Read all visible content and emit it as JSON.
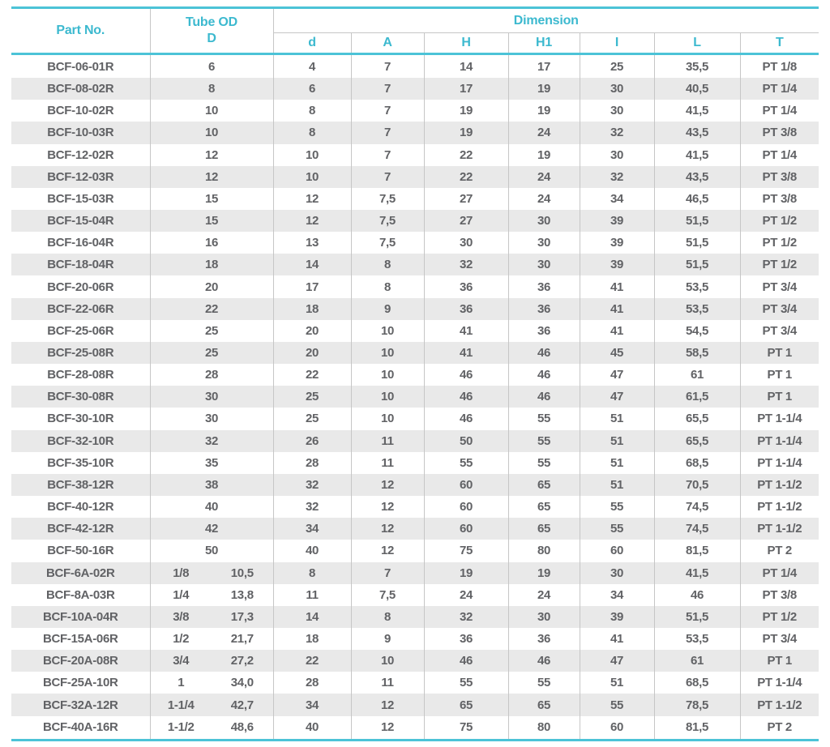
{
  "colors": {
    "accent_teal": "#4cc3d7",
    "header_text_teal": "#3cb9cf",
    "grid_gray": "#c6c6c6",
    "stripe_gray": "#e9e9e9",
    "body_text_gray": "#616265",
    "background": "#ffffff"
  },
  "table": {
    "header": {
      "part_no": "Part No.",
      "tube_od": "Tube OD",
      "tube_od_sub": "D",
      "dimension": "Dimension",
      "dim_columns": [
        "d",
        "A",
        "H",
        "H1",
        "I",
        "L",
        "T"
      ]
    },
    "rows": [
      [
        "BCF-06-01R",
        "6",
        "",
        "4",
        "7",
        "14",
        "17",
        "25",
        "35,5",
        "PT 1/8"
      ],
      [
        "BCF-08-02R",
        "8",
        "",
        "6",
        "7",
        "17",
        "19",
        "30",
        "40,5",
        "PT 1/4"
      ],
      [
        "BCF-10-02R",
        "10",
        "",
        "8",
        "7",
        "19",
        "19",
        "30",
        "41,5",
        "PT 1/4"
      ],
      [
        "BCF-10-03R",
        "10",
        "",
        "8",
        "7",
        "19",
        "24",
        "32",
        "43,5",
        "PT 3/8"
      ],
      [
        "BCF-12-02R",
        "12",
        "",
        "10",
        "7",
        "22",
        "19",
        "30",
        "41,5",
        "PT 1/4"
      ],
      [
        "BCF-12-03R",
        "12",
        "",
        "10",
        "7",
        "22",
        "24",
        "32",
        "43,5",
        "PT 3/8"
      ],
      [
        "BCF-15-03R",
        "15",
        "",
        "12",
        "7,5",
        "27",
        "24",
        "34",
        "46,5",
        "PT 3/8"
      ],
      [
        "BCF-15-04R",
        "15",
        "",
        "12",
        "7,5",
        "27",
        "30",
        "39",
        "51,5",
        "PT 1/2"
      ],
      [
        "BCF-16-04R",
        "16",
        "",
        "13",
        "7,5",
        "30",
        "30",
        "39",
        "51,5",
        "PT 1/2"
      ],
      [
        "BCF-18-04R",
        "18",
        "",
        "14",
        "8",
        "32",
        "30",
        "39",
        "51,5",
        "PT 1/2"
      ],
      [
        "BCF-20-06R",
        "20",
        "",
        "17",
        "8",
        "36",
        "36",
        "41",
        "53,5",
        "PT 3/4"
      ],
      [
        "BCF-22-06R",
        "22",
        "",
        "18",
        "9",
        "36",
        "36",
        "41",
        "53,5",
        "PT 3/4"
      ],
      [
        "BCF-25-06R",
        "25",
        "",
        "20",
        "10",
        "41",
        "36",
        "41",
        "54,5",
        "PT 3/4"
      ],
      [
        "BCF-25-08R",
        "25",
        "",
        "20",
        "10",
        "41",
        "46",
        "45",
        "58,5",
        "PT 1"
      ],
      [
        "BCF-28-08R",
        "28",
        "",
        "22",
        "10",
        "46",
        "46",
        "47",
        "61",
        "PT 1"
      ],
      [
        "BCF-30-08R",
        "30",
        "",
        "25",
        "10",
        "46",
        "46",
        "47",
        "61,5",
        "PT 1"
      ],
      [
        "BCF-30-10R",
        "30",
        "",
        "25",
        "10",
        "46",
        "55",
        "51",
        "65,5",
        "PT 1-1/4"
      ],
      [
        "BCF-32-10R",
        "32",
        "",
        "26",
        "11",
        "50",
        "55",
        "51",
        "65,5",
        "PT 1-1/4"
      ],
      [
        "BCF-35-10R",
        "35",
        "",
        "28",
        "11",
        "55",
        "55",
        "51",
        "68,5",
        "PT 1-1/4"
      ],
      [
        "BCF-38-12R",
        "38",
        "",
        "32",
        "12",
        "60",
        "65",
        "51",
        "70,5",
        "PT 1-1/2"
      ],
      [
        "BCF-40-12R",
        "40",
        "",
        "32",
        "12",
        "60",
        "65",
        "55",
        "74,5",
        "PT 1-1/2"
      ],
      [
        "BCF-42-12R",
        "42",
        "",
        "34",
        "12",
        "60",
        "65",
        "55",
        "74,5",
        "PT 1-1/2"
      ],
      [
        "BCF-50-16R",
        "50",
        "",
        "40",
        "12",
        "75",
        "80",
        "60",
        "81,5",
        "PT 2"
      ],
      [
        "BCF-6A-02R",
        "1/8",
        "10,5",
        "8",
        "7",
        "19",
        "19",
        "30",
        "41,5",
        "PT 1/4"
      ],
      [
        "BCF-8A-03R",
        "1/4",
        "13,8",
        "11",
        "7,5",
        "24",
        "24",
        "34",
        "46",
        "PT 3/8"
      ],
      [
        "BCF-10A-04R",
        "3/8",
        "17,3",
        "14",
        "8",
        "32",
        "30",
        "39",
        "51,5",
        "PT 1/2"
      ],
      [
        "BCF-15A-06R",
        "1/2",
        "21,7",
        "18",
        "9",
        "36",
        "36",
        "41",
        "53,5",
        "PT 3/4"
      ],
      [
        "BCF-20A-08R",
        "3/4",
        "27,2",
        "22",
        "10",
        "46",
        "46",
        "47",
        "61",
        "PT 1"
      ],
      [
        "BCF-25A-10R",
        "1",
        "34,0",
        "28",
        "11",
        "55",
        "55",
        "51",
        "68,5",
        "PT 1-1/4"
      ],
      [
        "BCF-32A-12R",
        "1-1/4",
        "42,7",
        "34",
        "12",
        "65",
        "65",
        "55",
        "78,5",
        "PT 1-1/2"
      ],
      [
        "BCF-40A-16R",
        "1-1/2",
        "48,6",
        "40",
        "12",
        "75",
        "80",
        "60",
        "81,5",
        "PT 2"
      ]
    ]
  }
}
